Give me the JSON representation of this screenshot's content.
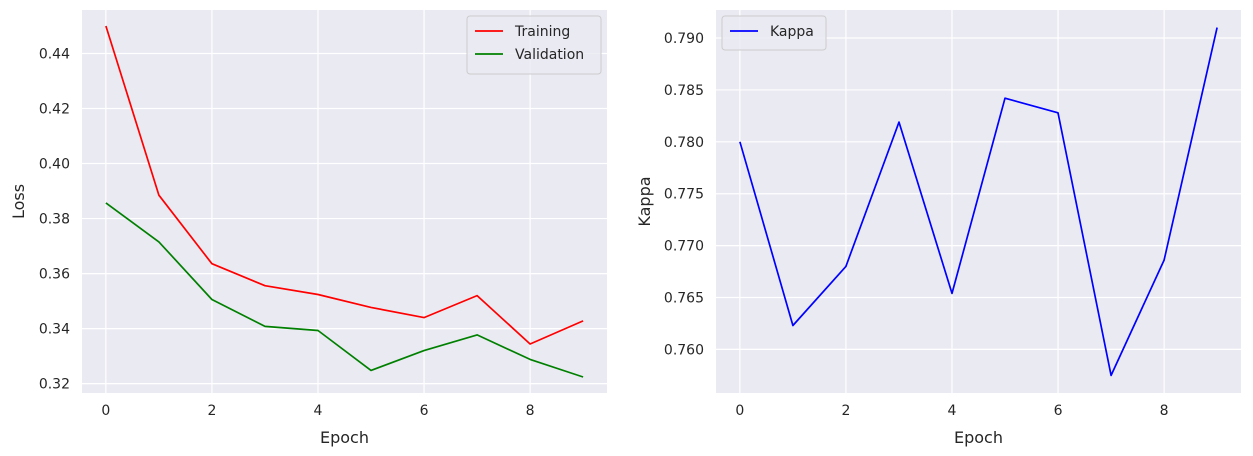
{
  "chart_data": [
    {
      "type": "line",
      "x": [
        0,
        1,
        2,
        3,
        4,
        5,
        6,
        7,
        8,
        9
      ],
      "series": [
        {
          "name": "Training",
          "color": "#ff0000",
          "values": [
            0.45,
            0.3885,
            0.3636,
            0.3556,
            0.3524,
            0.3477,
            0.344,
            0.352,
            0.3344,
            0.3428
          ]
        },
        {
          "name": "Validation",
          "color": "#008000",
          "values": [
            0.3857,
            0.3715,
            0.3506,
            0.3408,
            0.3393,
            0.3248,
            0.332,
            0.3377,
            0.3288,
            0.3224
          ]
        }
      ],
      "xlabel": "Epoch",
      "ylabel": "Loss",
      "xlim": [
        -0.45,
        9.45
      ],
      "ylim": [
        0.3166,
        0.4558
      ],
      "xticks": [
        0,
        2,
        4,
        6,
        8
      ],
      "xtick_labels": [
        "0",
        "2",
        "4",
        "6",
        "8"
      ],
      "yticks": [
        0.32,
        0.34,
        0.36,
        0.38,
        0.4,
        0.42,
        0.44
      ],
      "ytick_labels": [
        "0.32",
        "0.34",
        "0.36",
        "0.38",
        "0.40",
        "0.42",
        "0.44"
      ],
      "legend_position": "top-right",
      "grid": true
    },
    {
      "type": "line",
      "x": [
        0,
        1,
        2,
        3,
        4,
        5,
        6,
        7,
        8,
        9
      ],
      "series": [
        {
          "name": "Kappa",
          "color": "#0000ff",
          "values": [
            0.78,
            0.7623,
            0.768,
            0.7819,
            0.7654,
            0.7842,
            0.7828,
            0.7575,
            0.7686,
            0.791
          ]
        }
      ],
      "xlabel": "Epoch",
      "ylabel": "Kappa",
      "xlim": [
        -0.45,
        9.45
      ],
      "ylim": [
        0.7558,
        0.7927
      ],
      "xticks": [
        0,
        2,
        4,
        6,
        8
      ],
      "xtick_labels": [
        "0",
        "2",
        "4",
        "6",
        "8"
      ],
      "yticks": [
        0.76,
        0.765,
        0.77,
        0.775,
        0.78,
        0.785,
        0.79
      ],
      "ytick_labels": [
        "0.760",
        "0.765",
        "0.770",
        "0.775",
        "0.780",
        "0.785",
        "0.790"
      ],
      "legend_position": "top-left",
      "grid": true
    }
  ],
  "style": {
    "plot_background": "#eaeaf2",
    "grid_color": "#ffffff",
    "legend_border": "#cccccc"
  }
}
